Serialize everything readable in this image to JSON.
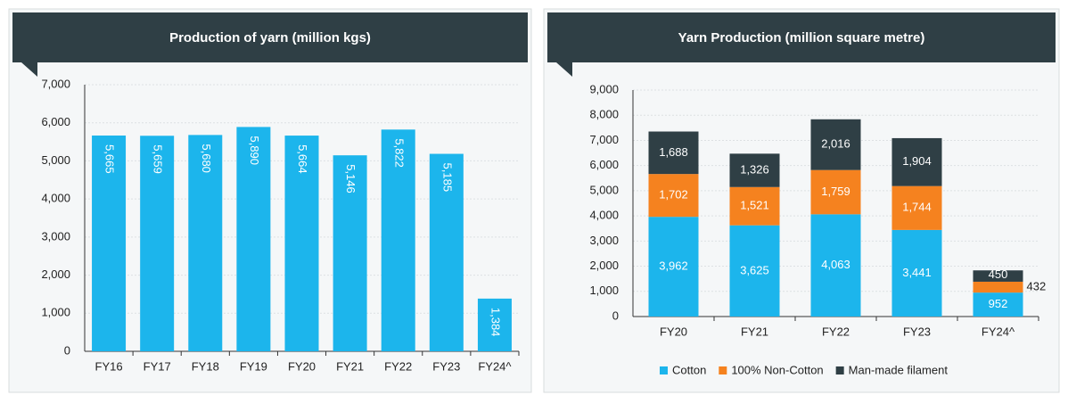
{
  "chart_data": [
    {
      "type": "bar",
      "title": "Production of yarn (million kgs)",
      "categories": [
        "FY16",
        "FY17",
        "FY18",
        "FY19",
        "FY20",
        "FY21",
        "FY22",
        "FY23",
        "FY24^"
      ],
      "values": [
        5665,
        5659,
        5680,
        5890,
        5664,
        5146,
        5822,
        5185,
        1384
      ],
      "value_labels": [
        "5,665",
        "5,659",
        "5,680",
        "5,890",
        "5,664",
        "5,146",
        "5,822",
        "5,185",
        "1,384"
      ],
      "color": "#1cb5ec",
      "ylim": [
        0,
        7000
      ],
      "yticks": [
        0,
        {
          "value": 1000,
          "label": "1,000"
        },
        {
          "value": 2000,
          "label": "2,000"
        },
        {
          "value": 3000,
          "label": "3,000"
        },
        {
          "value": 4000,
          "label": "4,000"
        },
        {
          "value": 5000,
          "label": "5,000"
        },
        {
          "value": 6000,
          "label": "6,000"
        },
        {
          "value": 7000,
          "label": "7,000"
        }
      ],
      "grid": true
    },
    {
      "type": "stacked_bar",
      "title": "Yarn Production (million square metre)",
      "categories": [
        "FY20",
        "FY21",
        "FY22",
        "FY23",
        "FY24^"
      ],
      "series": [
        {
          "name": "Cotton",
          "color": "#1cb5ec",
          "values": [
            3962,
            3625,
            4063,
            3441,
            952
          ],
          "value_labels": [
            "3,962",
            "3,625",
            "4,063",
            "3,441",
            "952"
          ]
        },
        {
          "name": "100% Non-Cotton",
          "color": "#f5821f",
          "values": [
            1702,
            1521,
            1759,
            1744,
            432
          ],
          "value_labels": [
            "1,702",
            "1,521",
            "1,759",
            "1,744",
            "432"
          ]
        },
        {
          "name": "Man-made filament",
          "color": "#2f3f45",
          "values": [
            1688,
            1326,
            2016,
            1904,
            450
          ],
          "value_labels": [
            "1,688",
            "1,326",
            "2,016",
            "1,904",
            "450"
          ]
        }
      ],
      "ylim": [
        0,
        9000
      ],
      "yticks": [
        0,
        {
          "value": 1000,
          "label": "1,000"
        },
        {
          "value": 2000,
          "label": "2,000"
        },
        {
          "value": 3000,
          "label": "3,000"
        },
        {
          "value": 4000,
          "label": "4,000"
        },
        {
          "value": 5000,
          "label": "5,000"
        },
        {
          "value": 6000,
          "label": "6,000"
        },
        {
          "value": 7000,
          "label": "7,000"
        },
        {
          "value": 8000,
          "label": "8,000"
        },
        {
          "value": 9000,
          "label": "9,000"
        }
      ],
      "grid": true,
      "legend": "bottom"
    }
  ]
}
